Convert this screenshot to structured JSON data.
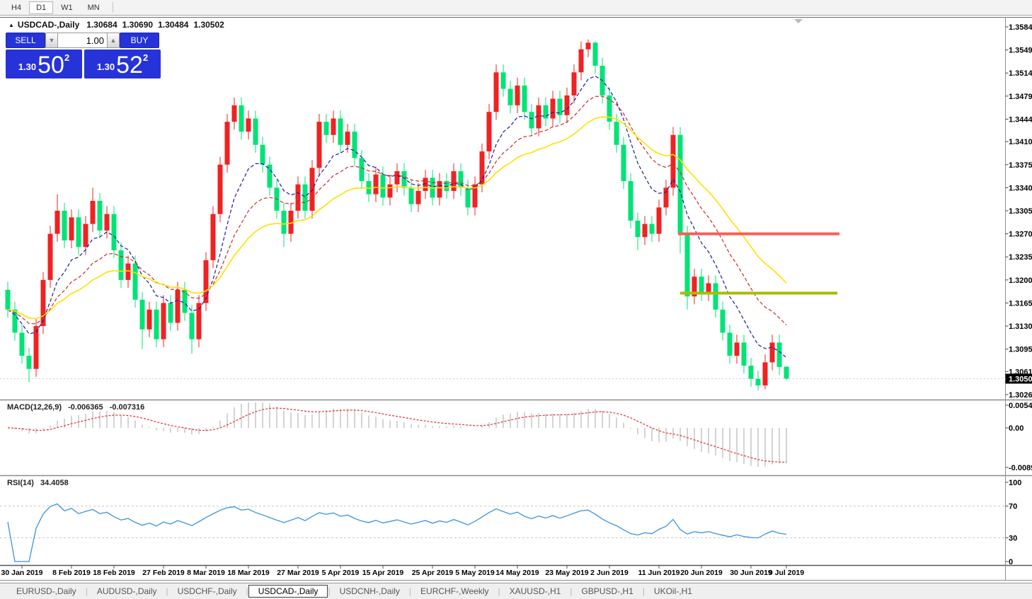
{
  "toolbar": {
    "timeframes": [
      "H4",
      "D1",
      "W1",
      "MN"
    ],
    "active_timeframe": "D1"
  },
  "chart_header": {
    "collapse_icon": "▲",
    "symbol": "USDCAD-,Daily",
    "open": "1.30684",
    "high": "1.30690",
    "low": "1.30484",
    "close": "1.30502"
  },
  "trade_panel": {
    "sell_label": "SELL",
    "buy_label": "BUY",
    "volume": "1.00",
    "spin_down_icon": "▼",
    "spin_up_icon": "▲",
    "sell_price_small": "1.30",
    "sell_price_big": "50",
    "sell_price_sup": "2",
    "buy_price_small": "1.30",
    "buy_price_big": "52",
    "buy_price_sup": "2"
  },
  "chart_data": {
    "type": "candlestick",
    "symbol": "USDCAD",
    "timeframe": "Daily",
    "colors": {
      "up_candle": "#f02222",
      "down_candle": "#00e476",
      "ma_fast": "#1a1aa8",
      "ma_mid": "#d02828",
      "ma_slow": "#ffe000",
      "macd_hist": "#c2c2c2",
      "macd_signal": "#e03030",
      "rsi_line": "#3b92de",
      "level_resistance": "#f85f57",
      "level_support": "#a9bd00",
      "price_badge_bg": "#000000",
      "price_badge_text": "#ffffff"
    },
    "price_axis": {
      "labels": [
        "1.35840",
        "1.35490",
        "1.35140",
        "1.34790",
        "1.34440",
        "1.34100",
        "1.33750",
        "1.33400",
        "1.33050",
        "1.32700",
        "1.32350",
        "1.32000",
        "1.31650",
        "1.31300",
        "1.30950",
        "1.30610",
        "1.30260"
      ],
      "current_price": "1.30502"
    },
    "x_axis": {
      "ticks": [
        {
          "label": "30 Jan 2019",
          "index": 2
        },
        {
          "label": "8 Feb 2019",
          "index": 9
        },
        {
          "label": "18 Feb 2019",
          "index": 15
        },
        {
          "label": "27 Feb 2019",
          "index": 22
        },
        {
          "label": "8 Mar 2019",
          "index": 28
        },
        {
          "label": "18 Mar 2019",
          "index": 34
        },
        {
          "label": "27 Mar 2019",
          "index": 41
        },
        {
          "label": "5 Apr 2019",
          "index": 47
        },
        {
          "label": "15 Apr 2019",
          "index": 53
        },
        {
          "label": "25 Apr 2019",
          "index": 60
        },
        {
          "label": "5 May 2019",
          "index": 66
        },
        {
          "label": "14 May 2019",
          "index": 72
        },
        {
          "label": "23 May 2019",
          "index": 79
        },
        {
          "label": "2 Jun 2019",
          "index": 85
        },
        {
          "label": "11 Jun 2019",
          "index": 92
        },
        {
          "label": "20 Jun 2019",
          "index": 98
        },
        {
          "label": "30 Jun 2019",
          "index": 105
        },
        {
          "label": "9 Jul 2019",
          "index": 110
        }
      ]
    },
    "candles": [
      [
        1.3185,
        1.3197,
        1.3143,
        1.3155
      ],
      [
        1.3155,
        1.3167,
        1.3108,
        1.312
      ],
      [
        1.312,
        1.3132,
        1.3073,
        1.3085
      ],
      [
        1.3085,
        1.3097,
        1.3045,
        1.3065
      ],
      [
        1.3065,
        1.3142,
        1.3053,
        1.313
      ],
      [
        1.313,
        1.3212,
        1.3118,
        1.32
      ],
      [
        1.32,
        1.3282,
        1.3188,
        1.327
      ],
      [
        1.327,
        1.333,
        1.3258,
        1.3305
      ],
      [
        1.3305,
        1.3317,
        1.3248,
        1.326
      ],
      [
        1.326,
        1.3307,
        1.3248,
        1.3295
      ],
      [
        1.3295,
        1.3307,
        1.3238,
        1.325
      ],
      [
        1.325,
        1.3297,
        1.3238,
        1.3285
      ],
      [
        1.3285,
        1.334,
        1.3273,
        1.332
      ],
      [
        1.332,
        1.3332,
        1.3263,
        1.3275
      ],
      [
        1.3275,
        1.3312,
        1.3263,
        1.33
      ],
      [
        1.33,
        1.3312,
        1.3233,
        1.3245
      ],
      [
        1.3245,
        1.3257,
        1.3188,
        1.32
      ],
      [
        1.32,
        1.3237,
        1.3188,
        1.3225
      ],
      [
        1.3225,
        1.3237,
        1.3158,
        1.317
      ],
      [
        1.317,
        1.3182,
        1.3095,
        1.3125
      ],
      [
        1.3125,
        1.3167,
        1.3113,
        1.3155
      ],
      [
        1.3155,
        1.3167,
        1.3098,
        1.311
      ],
      [
        1.311,
        1.3177,
        1.3098,
        1.3165
      ],
      [
        1.3165,
        1.3177,
        1.3123,
        1.3135
      ],
      [
        1.3135,
        1.3197,
        1.3123,
        1.3185
      ],
      [
        1.3185,
        1.3197,
        1.3138,
        1.315
      ],
      [
        1.315,
        1.3162,
        1.3088,
        1.311
      ],
      [
        1.311,
        1.3177,
        1.3098,
        1.3165
      ],
      [
        1.3165,
        1.3242,
        1.3153,
        1.323
      ],
      [
        1.323,
        1.3312,
        1.3218,
        1.33
      ],
      [
        1.33,
        1.3387,
        1.3288,
        1.3375
      ],
      [
        1.3375,
        1.3452,
        1.3363,
        1.344
      ],
      [
        1.344,
        1.3477,
        1.3428,
        1.3465
      ],
      [
        1.3465,
        1.3477,
        1.3413,
        1.3425
      ],
      [
        1.3425,
        1.3457,
        1.3413,
        1.3445
      ],
      [
        1.3445,
        1.3457,
        1.3393,
        1.3405
      ],
      [
        1.3405,
        1.3417,
        1.3363,
        1.3375
      ],
      [
        1.3375,
        1.3387,
        1.3328,
        1.334
      ],
      [
        1.334,
        1.3352,
        1.3293,
        1.3305
      ],
      [
        1.3305,
        1.3317,
        1.325,
        1.327
      ],
      [
        1.327,
        1.3317,
        1.3258,
        1.3305
      ],
      [
        1.3305,
        1.3357,
        1.3293,
        1.3345
      ],
      [
        1.3345,
        1.3357,
        1.3293,
        1.3305
      ],
      [
        1.3305,
        1.3382,
        1.3293,
        1.337
      ],
      [
        1.337,
        1.3452,
        1.3358,
        1.344
      ],
      [
        1.344,
        1.3452,
        1.3408,
        1.342
      ],
      [
        1.342,
        1.3457,
        1.3408,
        1.3445
      ],
      [
        1.3445,
        1.3457,
        1.3393,
        1.3405
      ],
      [
        1.3405,
        1.3437,
        1.3393,
        1.3425
      ],
      [
        1.3425,
        1.3437,
        1.3373,
        1.3385
      ],
      [
        1.3385,
        1.3397,
        1.3338,
        1.335
      ],
      [
        1.335,
        1.3362,
        1.3318,
        1.333
      ],
      [
        1.333,
        1.3372,
        1.3318,
        1.336
      ],
      [
        1.336,
        1.3372,
        1.3313,
        1.3325
      ],
      [
        1.3325,
        1.3357,
        1.3313,
        1.3345
      ],
      [
        1.3345,
        1.3377,
        1.3333,
        1.3365
      ],
      [
        1.3365,
        1.3377,
        1.3328,
        1.334
      ],
      [
        1.334,
        1.3352,
        1.3303,
        1.3315
      ],
      [
        1.3315,
        1.3347,
        1.3303,
        1.3335
      ],
      [
        1.3335,
        1.3367,
        1.3323,
        1.3355
      ],
      [
        1.3355,
        1.3367,
        1.3313,
        1.3325
      ],
      [
        1.3325,
        1.3362,
        1.3313,
        1.335
      ],
      [
        1.335,
        1.3362,
        1.3323,
        1.3335
      ],
      [
        1.3335,
        1.3377,
        1.3323,
        1.3365
      ],
      [
        1.3365,
        1.3377,
        1.3328,
        1.334
      ],
      [
        1.334,
        1.3352,
        1.3298,
        1.331
      ],
      [
        1.331,
        1.3357,
        1.3298,
        1.3345
      ],
      [
        1.3345,
        1.3407,
        1.3333,
        1.3395
      ],
      [
        1.3395,
        1.3467,
        1.3383,
        1.3455
      ],
      [
        1.3455,
        1.3527,
        1.3443,
        1.3515
      ],
      [
        1.3515,
        1.3527,
        1.3478,
        1.349
      ],
      [
        1.349,
        1.3502,
        1.3453,
        1.3465
      ],
      [
        1.3465,
        1.3507,
        1.3453,
        1.3495
      ],
      [
        1.3495,
        1.3507,
        1.3443,
        1.3455
      ],
      [
        1.3455,
        1.3467,
        1.3418,
        1.343
      ],
      [
        1.343,
        1.3477,
        1.3418,
        1.3465
      ],
      [
        1.3465,
        1.3477,
        1.3433,
        1.3445
      ],
      [
        1.3445,
        1.3487,
        1.3433,
        1.3475
      ],
      [
        1.3475,
        1.3487,
        1.3438,
        1.345
      ],
      [
        1.345,
        1.3492,
        1.3438,
        1.348
      ],
      [
        1.348,
        1.3527,
        1.3468,
        1.3515
      ],
      [
        1.3515,
        1.3562,
        1.3503,
        1.355
      ],
      [
        1.355,
        1.3565,
        1.3538,
        1.356
      ],
      [
        1.356,
        1.3562,
        1.3513,
        1.3525
      ],
      [
        1.3525,
        1.3537,
        1.3468,
        1.348
      ],
      [
        1.348,
        1.3492,
        1.3428,
        1.344
      ],
      [
        1.344,
        1.3452,
        1.3393,
        1.3405
      ],
      [
        1.3405,
        1.3417,
        1.3338,
        1.335
      ],
      [
        1.335,
        1.3362,
        1.3278,
        1.329
      ],
      [
        1.329,
        1.3302,
        1.3245,
        1.3265
      ],
      [
        1.3265,
        1.3297,
        1.3253,
        1.3285
      ],
      [
        1.3285,
        1.3297,
        1.3258,
        1.327
      ],
      [
        1.327,
        1.3322,
        1.3258,
        1.331
      ],
      [
        1.331,
        1.3352,
        1.3298,
        1.334
      ],
      [
        1.334,
        1.3432,
        1.3328,
        1.342
      ],
      [
        1.342,
        1.3432,
        1.324,
        1.327
      ],
      [
        1.327,
        1.3282,
        1.3155,
        1.3175
      ],
      [
        1.3175,
        1.3217,
        1.3163,
        1.3205
      ],
      [
        1.3205,
        1.3217,
        1.3168,
        1.318
      ],
      [
        1.318,
        1.3207,
        1.3168,
        1.3195
      ],
      [
        1.3195,
        1.3207,
        1.3143,
        1.3155
      ],
      [
        1.3155,
        1.3167,
        1.3108,
        1.312
      ],
      [
        1.312,
        1.3132,
        1.3073,
        1.3085
      ],
      [
        1.3085,
        1.3117,
        1.3073,
        1.3105
      ],
      [
        1.3105,
        1.3117,
        1.3058,
        1.307
      ],
      [
        1.307,
        1.3082,
        1.3038,
        1.305
      ],
      [
        1.305,
        1.3062,
        1.3032,
        1.304
      ],
      [
        1.304,
        1.3087,
        1.3034,
        1.3075
      ],
      [
        1.3075,
        1.3117,
        1.3063,
        1.3105
      ],
      [
        1.3105,
        1.3117,
        1.3056,
        1.3068
      ],
      [
        1.30684,
        1.3069,
        1.30484,
        1.30502
      ]
    ],
    "moving_averages": [
      {
        "name": "ma-fast",
        "period": 8,
        "style": "dashed",
        "color": "#1a1aa8"
      },
      {
        "name": "ma-mid",
        "period": 16,
        "style": "dashed",
        "color": "#d02828"
      },
      {
        "name": "ma-slow",
        "period": 28,
        "style": "solid",
        "color": "#ffe000"
      }
    ],
    "levels": [
      {
        "name": "resistance-line",
        "price": 1.327,
        "from_index": 94.7,
        "to_index": 117.5,
        "color": "#f85f57",
        "thickness": 4
      },
      {
        "name": "support-line",
        "price": 1.318,
        "from_index": 95.0,
        "to_index": 117.2,
        "color": "#a9bd00",
        "thickness": 4
      }
    ],
    "macd": {
      "title": "MACD(12,26,9)",
      "value_main": "-0.006365",
      "value_signal": "-0.007316",
      "params": [
        12,
        26,
        9
      ],
      "axis_labels": [
        "0.005484",
        "0.00",
        "-0.00897"
      ]
    },
    "rsi": {
      "title": "RSI(14)",
      "value": "34.4058",
      "period": 14,
      "axis_labels": [
        "100",
        "70",
        "30",
        "0"
      ],
      "level_lines": [
        70,
        30
      ]
    }
  },
  "tabs": {
    "items": [
      "EURUSD-,Daily",
      "AUDUSD-,Daily",
      "USDCHF-,Daily",
      "USDCAD-,Daily",
      "USDCNH-,Daily",
      "EURCHF-,Weekly",
      "XAUUSD-,H1",
      "GBPUSD-,H1",
      "UKOil-,H1"
    ],
    "active": "USDCAD-,Daily"
  }
}
